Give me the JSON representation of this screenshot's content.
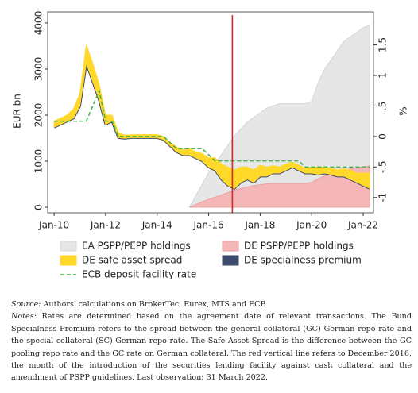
{
  "chart_data": {
    "type": "area-line",
    "y_label": "EUR bn",
    "y2_label": "%",
    "xlim": [
      2009.75,
      2022.4
    ],
    "ylim": [
      -120,
      4240
    ],
    "y2lim": [
      -1.25,
      2.04
    ],
    "xticks": [
      {
        "value": 2010,
        "label": "Jan-10"
      },
      {
        "value": 2012,
        "label": "Jan-12"
      },
      {
        "value": 2014,
        "label": "Jan-14"
      },
      {
        "value": 2016,
        "label": "Jan-16"
      },
      {
        "value": 2018,
        "label": "Jan-18"
      },
      {
        "value": 2020,
        "label": "Jan-20"
      },
      {
        "value": 2022,
        "label": "Jan-22"
      }
    ],
    "yticks": [
      0,
      1000,
      2000,
      3000,
      4000
    ],
    "y2ticks": [
      -1,
      {
        "value": -0.5,
        "label": "-.5"
      },
      0,
      {
        "value": 0.5,
        "label": ".5"
      },
      1,
      1.5
    ],
    "x": [
      2010,
      2010.25,
      2010.5,
      2010.75,
      2011,
      2011.25,
      2011.5,
      2011.75,
      2012,
      2012.25,
      2012.5,
      2012.75,
      2013,
      2013.25,
      2013.5,
      2013.75,
      2014,
      2014.25,
      2014.5,
      2014.75,
      2015,
      2015.25,
      2015.5,
      2015.75,
      2016,
      2016.25,
      2016.5,
      2016.75,
      2017,
      2017.25,
      2017.5,
      2017.75,
      2018,
      2018.25,
      2018.5,
      2018.75,
      2019,
      2019.25,
      2019.5,
      2019.75,
      2020,
      2020.25,
      2020.5,
      2020.75,
      2021,
      2021.25,
      2021.5,
      2021.75,
      2022,
      2022.25
    ],
    "series": [
      {
        "name": "EA PSPP/PEPP holdings",
        "color": "#e6e6e6",
        "kind": "area",
        "values": [
          null,
          null,
          null,
          null,
          null,
          null,
          null,
          null,
          null,
          null,
          null,
          null,
          null,
          null,
          null,
          null,
          null,
          null,
          null,
          null,
          null,
          0,
          250,
          500,
          750,
          950,
          1150,
          1350,
          1550,
          1700,
          1850,
          1950,
          2050,
          2150,
          2200,
          2250,
          2250,
          2250,
          2250,
          2250,
          2300,
          2700,
          3000,
          3200,
          3400,
          3600,
          3700,
          3800,
          3900,
          3950
        ]
      },
      {
        "name": "DE PSPP/PEPP holdings",
        "color": "#f4b6b6",
        "kind": "area",
        "values": [
          null,
          null,
          null,
          null,
          null,
          null,
          null,
          null,
          null,
          null,
          null,
          null,
          null,
          null,
          null,
          null,
          null,
          null,
          null,
          null,
          null,
          0,
          60,
          120,
          170,
          220,
          270,
          320,
          370,
          410,
          440,
          470,
          490,
          510,
          520,
          520,
          520,
          520,
          520,
          520,
          540,
          620,
          680,
          720,
          760,
          800,
          830,
          860,
          880,
          900
        ]
      },
      {
        "name": "DE specialness premium",
        "color": "#3d4a6d",
        "kind": "line",
        "axis": "y2",
        "values": [
          0.15,
          0.2,
          0.25,
          0.3,
          0.5,
          1.2,
          0.9,
          0.6,
          0.2,
          0.25,
          -0.02,
          -0.03,
          -0.02,
          -0.02,
          -0.02,
          -0.02,
          -0.02,
          -0.05,
          -0.15,
          -0.25,
          -0.3,
          -0.3,
          -0.35,
          -0.4,
          -0.5,
          -0.55,
          -0.7,
          -0.8,
          -0.85,
          -0.75,
          -0.7,
          -0.75,
          -0.65,
          -0.65,
          -0.6,
          -0.6,
          -0.55,
          -0.5,
          -0.55,
          -0.6,
          -0.6,
          -0.62,
          -0.6,
          -0.62,
          -0.65,
          -0.65,
          -0.7,
          -0.75,
          -0.8,
          -0.85
        ]
      },
      {
        "name": "DE safe asset spread",
        "color": "#ffd82a",
        "kind": "band",
        "axis": "y2",
        "values": [
          0.1,
          0.1,
          0.1,
          0.15,
          0.2,
          0.3,
          0.3,
          0.25,
          0.15,
          0.1,
          0.08,
          0.05,
          0.05,
          0.05,
          0.05,
          0.05,
          0.05,
          0.05,
          0.05,
          0.08,
          0.08,
          0.1,
          0.1,
          0.12,
          0.15,
          0.2,
          0.25,
          0.3,
          0.3,
          0.25,
          0.2,
          0.2,
          0.18,
          0.15,
          0.12,
          0.1,
          0.1,
          0.08,
          0.08,
          0.08,
          0.1,
          0.12,
          0.1,
          0.1,
          0.1,
          0.12,
          0.15,
          0.15,
          0.2,
          0.25
        ]
      },
      {
        "name": "ECB deposit facility rate",
        "color": "#3cb44b",
        "kind": "dashed",
        "axis": "y2",
        "values": [
          0.25,
          0.25,
          0.25,
          0.25,
          0.25,
          0.25,
          0.5,
          0.75,
          0.25,
          0.25,
          0,
          0,
          0,
          0,
          0,
          0,
          0,
          0,
          -0.1,
          -0.2,
          -0.2,
          -0.2,
          -0.2,
          -0.2,
          -0.3,
          -0.4,
          -0.4,
          -0.4,
          -0.4,
          -0.4,
          -0.4,
          -0.4,
          -0.4,
          -0.4,
          -0.4,
          -0.4,
          -0.4,
          -0.4,
          -0.4,
          -0.5,
          -0.5,
          -0.5,
          -0.5,
          -0.5,
          -0.5,
          -0.5,
          -0.5,
          -0.5,
          -0.5,
          -0.5
        ]
      }
    ],
    "vline": {
      "x": 2016.92,
      "color": "#d62728"
    },
    "legend_order": [
      0,
      1,
      3,
      2,
      4
    ]
  },
  "notes": {
    "source_label": "Source:",
    "source_text": " Authors' calculations on BrokerTec, Eurex, MTS and ECB",
    "notes_label": "Notes:",
    "notes_text": " Rates are determined based on the agreement date of relevant transactions. The Bund Specialness Premium refers to the spread between the general collateral (GC) German repo rate and the special collateral (SC) German repo rate. The Safe Asset Spread is the difference between the GC pooling repo rate and the GC rate on German collateral. The red vertical line refers to December 2016, the month of the introduction of the securities lending facility against cash collateral and the amendment of PSPP guidelines. Last observation: 31 March 2022."
  }
}
